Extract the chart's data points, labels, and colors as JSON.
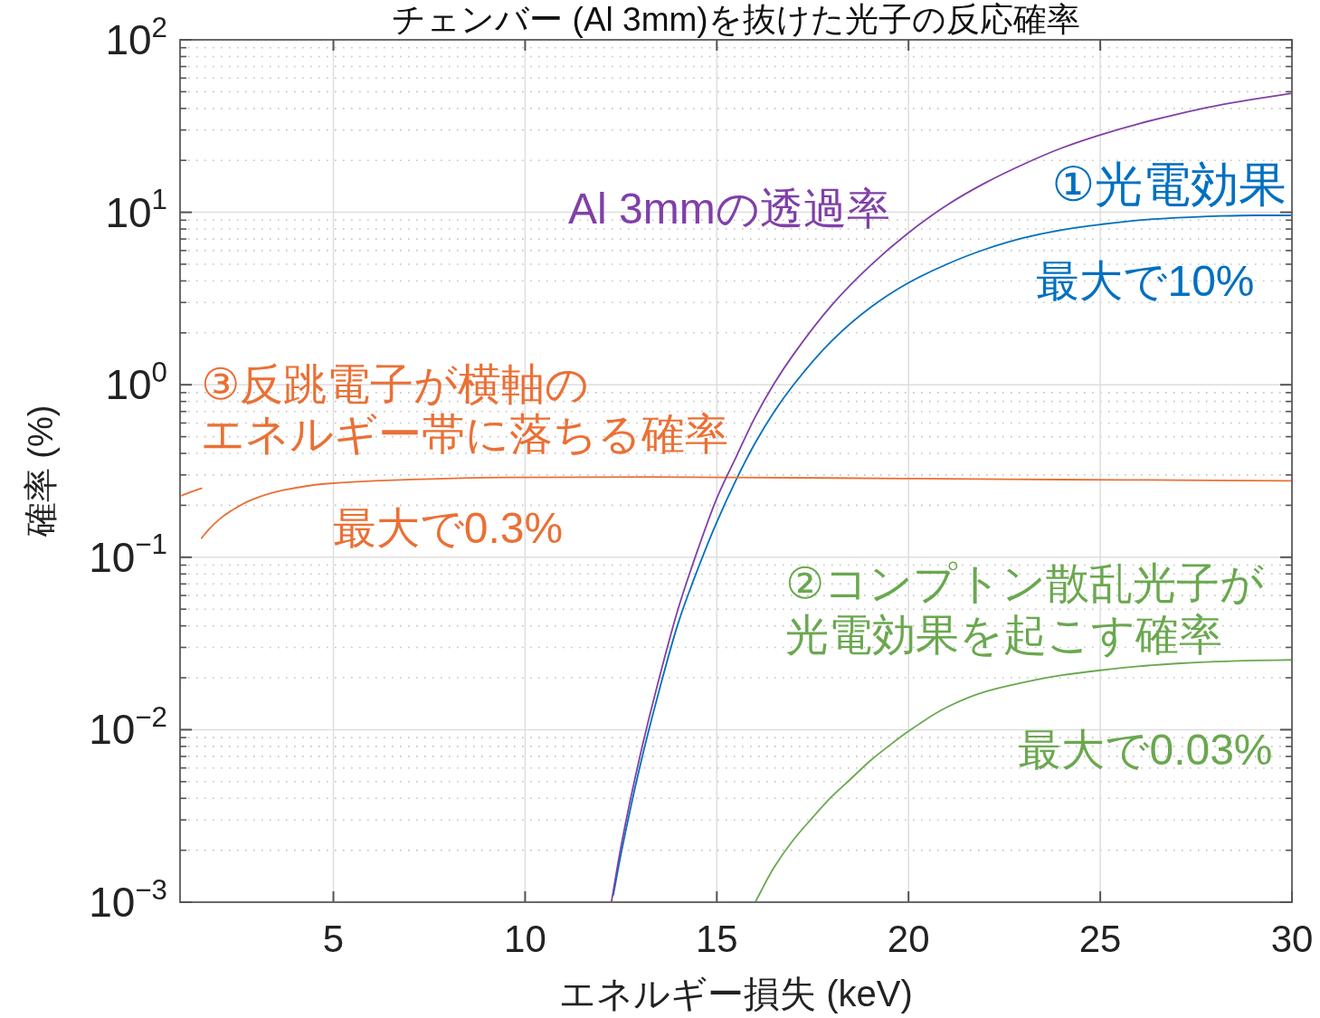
{
  "chart_data": {
    "type": "line",
    "title": "チェンバー (Al 3mm)を抜けた光子の反応確率",
    "xlabel": "エネルギー損失 (keV)",
    "ylabel": "確率 (%)",
    "log": "y",
    "grid": true,
    "xlim": [
      1,
      30
    ],
    "xticks": [
      5,
      10,
      15,
      20,
      25,
      30
    ],
    "ylim": [
      0.001,
      100
    ],
    "yticks": [
      {
        "value": 0.001,
        "label": "10$^{−3}$"
      },
      {
        "value": 0.01,
        "label": "10$^{−2}$"
      },
      {
        "value": 0.1,
        "label": "10$^{−1}$"
      },
      {
        "value": 1,
        "label": "10$^{0}$"
      },
      {
        "value": 10,
        "label": "10$^{1}$"
      },
      {
        "value": 100,
        "label": "10$^{2}$"
      }
    ],
    "series": [
      {
        "name": "①光電効果",
        "color": "#0070C0",
        "x": [
          12.3,
          12.5,
          13,
          13.5,
          14,
          14.5,
          15,
          15.5,
          16,
          16.5,
          17,
          18,
          19,
          20,
          21,
          22,
          23,
          24,
          25,
          26,
          27,
          28,
          29,
          30
        ],
        "values": [
          0.0011,
          0.0019,
          0.0062,
          0.017,
          0.042,
          0.085,
          0.16,
          0.28,
          0.46,
          0.7,
          1.0,
          1.8,
          2.8,
          3.9,
          5.0,
          6.1,
          7.1,
          7.9,
          8.5,
          9.0,
          9.3,
          9.5,
          9.6,
          9.6
        ]
      },
      {
        "name": "②コンプトン散乱光子が光電効果を起こす確率",
        "color": "#6AA84F",
        "x": [
          16.0,
          16.5,
          17,
          17.5,
          18,
          18.5,
          19,
          19.5,
          20,
          21,
          22,
          23,
          24,
          25,
          26,
          27,
          28,
          29,
          30
        ],
        "values": [
          0.001,
          0.0016,
          0.0023,
          0.0031,
          0.0041,
          0.0052,
          0.0066,
          0.0081,
          0.0098,
          0.0135,
          0.0166,
          0.0188,
          0.0207,
          0.0221,
          0.0233,
          0.0242,
          0.0248,
          0.0252,
          0.0254
        ]
      },
      {
        "name": "③反跳電子が横軸のエネルギー帯に落ちる確率",
        "color": "#EA7035",
        "x": [
          1.05,
          1.3,
          1.56,
          null,
          1.56,
          1.75,
          2.04,
          2.42,
          2.91,
          3.67,
          4.83,
          6.57,
          9.44,
          13.3,
          15.2,
          18,
          21,
          24,
          27,
          30
        ],
        "values": [
          0.228,
          0.24,
          0.251,
          null,
          0.129,
          0.145,
          0.167,
          0.191,
          0.217,
          0.244,
          0.267,
          0.28,
          0.29,
          0.292,
          0.29,
          0.288,
          0.285,
          0.282,
          0.28,
          0.277
        ]
      },
      {
        "name": "Al 3mmの透過率",
        "color": "#8040A8",
        "x": [
          12.25,
          12.5,
          13,
          13.5,
          14,
          14.5,
          15,
          15.5,
          16,
          16.5,
          17,
          18,
          19,
          20,
          21,
          22,
          23,
          24,
          25,
          26,
          27,
          28,
          29,
          30
        ],
        "values": [
          0.001,
          0.0021,
          0.0071,
          0.02,
          0.051,
          0.11,
          0.22,
          0.38,
          0.65,
          1.02,
          1.5,
          2.9,
          4.9,
          7.6,
          11.0,
          14.8,
          19.0,
          23.6,
          28.1,
          32.6,
          37.0,
          41.3,
          45.2,
          49
        ]
      }
    ],
    "annotations": [
      "最大で10%",
      "最大で0.3%",
      "最大で0.03%"
    ]
  }
}
